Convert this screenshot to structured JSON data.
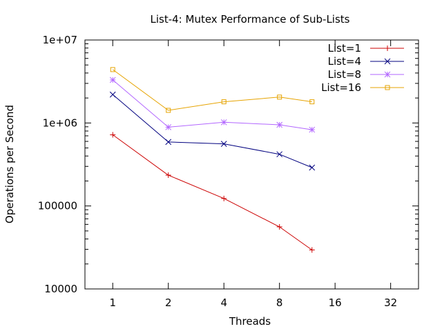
{
  "chart_data": {
    "type": "line",
    "title": "List-4: Mutex Performance of Sub-Lists",
    "xlabel": "Threads",
    "ylabel": "Operations per Second",
    "x_scale": "log2",
    "y_scale": "log10",
    "xlim": [
      0.707,
      45.3
    ],
    "ylim": [
      10000,
      10000000
    ],
    "x_ticks": [
      1,
      2,
      4,
      8,
      16,
      32
    ],
    "x_tick_labels": [
      "1",
      "2",
      "4",
      "8",
      "16",
      "32"
    ],
    "y_ticks": [
      10000,
      100000,
      1000000,
      10000000
    ],
    "y_tick_labels": [
      "10000",
      "100000",
      "1e+06",
      "1e+07"
    ],
    "x": [
      1,
      2,
      4,
      8,
      12
    ],
    "series": [
      {
        "name": "List=1",
        "color": "#cc0000",
        "marker": "plus",
        "values": [
          720000,
          235000,
          123000,
          56000,
          29500
        ]
      },
      {
        "name": "List=4",
        "color": "#00007f",
        "marker": "cross",
        "values": [
          2200000,
          590000,
          560000,
          420000,
          290000
        ]
      },
      {
        "name": "List=8",
        "color": "#b266ff",
        "marker": "star",
        "values": [
          3300000,
          890000,
          1020000,
          950000,
          830000
        ]
      },
      {
        "name": "List=16",
        "color": "#e6a300",
        "marker": "square",
        "values": [
          4400000,
          1420000,
          1800000,
          2050000,
          1800000
        ]
      }
    ],
    "legend_position": "top-right",
    "grid": false
  }
}
